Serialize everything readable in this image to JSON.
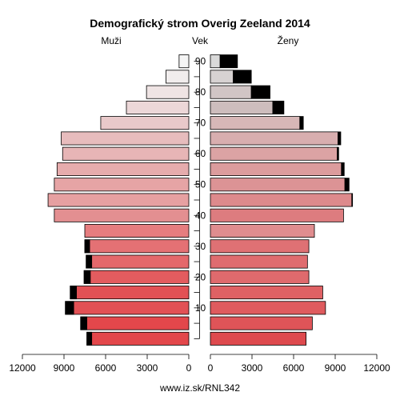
{
  "chart_data": {
    "type": "bar",
    "title": "Demografický strom Overig Zeeland 2014",
    "left_label": "Muži",
    "center_label": "Vek",
    "right_label": "Ženy",
    "footer": "www.iz.sk/RNL342",
    "age_groups": [
      "0-4",
      "5-9",
      "10-14",
      "15-19",
      "20-24",
      "25-29",
      "30-34",
      "35-39",
      "40-44",
      "45-49",
      "50-54",
      "55-59",
      "60-64",
      "65-69",
      "70-74",
      "75-79",
      "80-84",
      "85-89",
      "90+"
    ],
    "age_ticks": [
      10,
      20,
      30,
      40,
      50,
      60,
      70,
      80,
      90
    ],
    "x_ticks": [
      "12000",
      "9000",
      "6000",
      "3000",
      "0",
      "3000",
      "6000",
      "9000",
      "12000"
    ],
    "xlim": [
      0,
      12000
    ],
    "series": [
      {
        "name": "Muži",
        "side": "left",
        "values": [
          7000,
          7350,
          8300,
          8100,
          7100,
          7000,
          7150,
          7500,
          9700,
          10150,
          9700,
          9500,
          9100,
          9200,
          6350,
          4500,
          3050,
          1650,
          700
        ],
        "excess": [
          350,
          450,
          600,
          450,
          450,
          400,
          350,
          0,
          0,
          0,
          0,
          0,
          0,
          0,
          0,
          0,
          0,
          0,
          0
        ]
      },
      {
        "name": "Ženy",
        "side": "right",
        "values": [
          6900,
          7350,
          8300,
          8100,
          7100,
          7000,
          7100,
          7500,
          9600,
          10200,
          9700,
          9450,
          9150,
          9200,
          6450,
          4500,
          2950,
          1650,
          700
        ],
        "excess": [
          0,
          0,
          0,
          0,
          0,
          0,
          0,
          0,
          0,
          50,
          300,
          200,
          100,
          200,
          250,
          800,
          1350,
          1300,
          1250
        ]
      }
    ],
    "colors": {
      "male": [
        "#e3474b",
        "#e3474b",
        "#e25155",
        "#e25155",
        "#e35c5f",
        "#e4686b",
        "#e47174",
        "#e67d7f",
        "#e38f91",
        "#e6a0a1",
        "#e6a4a5",
        "#e6acad",
        "#e7b5b6",
        "#e7bcbd",
        "#e9c9ca",
        "#ecd7d8",
        "#efe4e4",
        "#f1eded",
        "#f5f5f5"
      ],
      "female": [
        "#de4a4e",
        "#df5458",
        "#df5b5e",
        "#df6164",
        "#df6a6d",
        "#df6c6f",
        "#df7174",
        "#e08d8f",
        "#dd7c7f",
        "#dd8a8c",
        "#dc9395",
        "#dc9c9d",
        "#dca3a4",
        "#d8aeaf",
        "#d7b7b7",
        "#cdbdbd",
        "#d1c5c5",
        "#d7d2d2",
        "#d9d9d9"
      ],
      "excess": "#000000"
    }
  }
}
